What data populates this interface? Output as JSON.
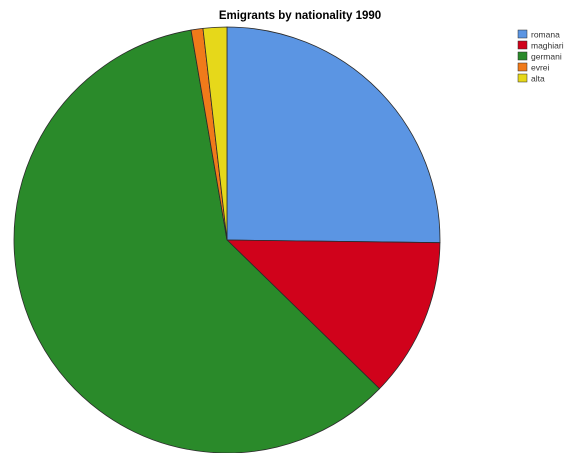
{
  "chart_data": {
    "type": "pie",
    "title": "Emigrants by nationality 1990",
    "slices": [
      {
        "label": "romana",
        "value": 25.2,
        "color": "#5b95e3"
      },
      {
        "label": "maghiari",
        "value": 12.1,
        "color": "#d0021b"
      },
      {
        "label": "germani",
        "value": 60.0,
        "color": "#2a8a2a"
      },
      {
        "label": "evrei",
        "value": 0.9,
        "color": "#f07a1a"
      },
      {
        "label": "alta",
        "value": 1.8,
        "color": "#e6d81a"
      }
    ],
    "start_angle": "12 o'clock",
    "direction": "clockwise",
    "legend_position": "top-right"
  }
}
